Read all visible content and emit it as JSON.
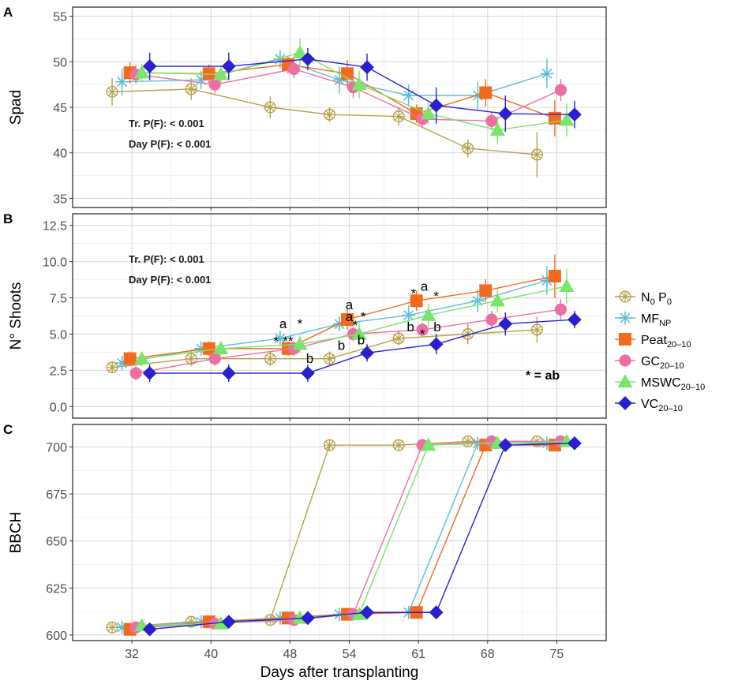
{
  "chart_data": {
    "type": "line",
    "xlabel": "Days after transplanting",
    "x": [
      32,
      40,
      48,
      54,
      61,
      68,
      75
    ],
    "xlim": [
      26,
      80
    ],
    "legend": {
      "placement": "right",
      "entries": [
        {
          "key": "N0P0",
          "base": "N",
          "sub": "0",
          "base2": " P",
          "sub2": "0",
          "color": "#b5a14a",
          "marker": "circle-x"
        },
        {
          "key": "MFNP",
          "base": "MF",
          "sub": "NP",
          "base2": "",
          "sub2": "",
          "color": "#5bbfd8",
          "marker": "asterisk"
        },
        {
          "key": "Peat",
          "base": "Peat",
          "sub": "20–10",
          "base2": "",
          "sub2": "",
          "color": "#f26b1d",
          "marker": "square"
        },
        {
          "key": "GC",
          "base": "GC",
          "sub": "20–10",
          "base2": "",
          "sub2": "",
          "color": "#ec6fa4",
          "marker": "circle"
        },
        {
          "key": "MSWC",
          "base": "MSWC",
          "sub": "20–10",
          "base2": "",
          "sub2": "",
          "color": "#7ae56c",
          "marker": "triangle"
        },
        {
          "key": "VC",
          "base": "VC",
          "sub": "20–10",
          "base2": "",
          "sub2": "",
          "color": "#2a1fd6",
          "marker": "diamond"
        }
      ]
    },
    "panels": [
      {
        "label": "A",
        "ylabel": "Spad",
        "ylim": [
          34,
          56
        ],
        "yticks": [
          35,
          40,
          45,
          50,
          55
        ],
        "yticklabels": [
          "35",
          "40",
          "45",
          "50",
          "55"
        ],
        "stats": [
          "Tr. P(F): < 0.001",
          "Day P(F): < 0.001"
        ],
        "series": [
          {
            "key": "N0P0",
            "values": [
              46.7,
              47.0,
              45.0,
              44.2,
              44.0,
              40.5,
              39.8
            ],
            "errors": [
              1.5,
              1.2,
              1.2,
              0.8,
              1.0,
              1.0,
              2.5
            ]
          },
          {
            "key": "MFNP",
            "values": [
              47.8,
              48.0,
              50.3,
              48.0,
              46.3,
              46.3,
              48.7
            ],
            "errors": [
              1.5,
              1.0,
              1.0,
              1.5,
              1.2,
              1.5,
              1.6
            ]
          },
          {
            "key": "Peat",
            "values": [
              48.8,
              48.7,
              49.7,
              48.7,
              44.3,
              46.6,
              43.8
            ],
            "errors": [
              1.2,
              1.0,
              1.0,
              1.5,
              1.0,
              1.5,
              2.0
            ]
          },
          {
            "key": "GC",
            "values": [
              48.6,
              47.5,
              49.2,
              47.2,
              43.7,
              43.5,
              46.9
            ],
            "errors": [
              1.0,
              1.0,
              1.0,
              1.2,
              1.0,
              1.0,
              1.2
            ]
          },
          {
            "key": "MSWC",
            "values": [
              48.8,
              48.6,
              51.0,
              47.5,
              44.3,
              42.5,
              43.6
            ],
            "errors": [
              1.0,
              1.0,
              1.6,
              1.5,
              1.2,
              1.5,
              1.8
            ]
          },
          {
            "key": "VC",
            "values": [
              49.5,
              49.5,
              50.3,
              49.4,
              45.2,
              44.3,
              44.2
            ],
            "errors": [
              1.5,
              1.5,
              1.2,
              1.5,
              2.0,
              2.0,
              1.5
            ]
          }
        ]
      },
      {
        "label": "B",
        "ylabel": "N° Shoots",
        "ylim": [
          -0.8,
          13.3
        ],
        "yticks": [
          0,
          2.5,
          5,
          7.5,
          10,
          12.5
        ],
        "yticklabels": [
          "0.0",
          "2.5",
          "5.0",
          "7.5",
          "10.0",
          "12.5"
        ],
        "stats": [
          "Tr. P(F): < 0.001",
          "Day P(F): < 0.001"
        ],
        "note": "* = ab",
        "series": [
          {
            "key": "N0P0",
            "values": [
              2.7,
              3.3,
              3.3,
              3.3,
              4.7,
              5.0,
              5.3
            ],
            "errors": [
              0.4,
              0.5,
              0.5,
              0.5,
              0.5,
              0.7,
              0.9
            ]
          },
          {
            "key": "MFNP",
            "values": [
              3.0,
              4.0,
              4.7,
              5.7,
              6.3,
              7.3,
              8.7
            ],
            "errors": [
              0.5,
              0.5,
              0.5,
              0.5,
              0.7,
              0.8,
              1.0
            ]
          },
          {
            "key": "Peat",
            "values": [
              3.3,
              4.0,
              4.0,
              6.0,
              7.3,
              8.0,
              9.0
            ],
            "errors": [
              0.5,
              0.5,
              0.5,
              0.7,
              0.7,
              0.8,
              1.5
            ]
          },
          {
            "key": "GC",
            "values": [
              2.3,
              3.3,
              4.0,
              5.0,
              5.3,
              6.0,
              6.7
            ],
            "errors": [
              0.5,
              0.5,
              0.5,
              0.5,
              0.5,
              0.6,
              0.7
            ]
          },
          {
            "key": "MSWC",
            "values": [
              3.3,
              4.0,
              4.3,
              5.0,
              6.3,
              7.3,
              8.3
            ],
            "errors": [
              0.5,
              0.5,
              0.6,
              0.8,
              0.8,
              0.8,
              1.2
            ]
          },
          {
            "key": "VC",
            "values": [
              2.3,
              2.3,
              2.3,
              3.7,
              4.3,
              5.7,
              6.0
            ],
            "errors": [
              0.6,
              0.6,
              0.6,
              0.6,
              0.7,
              0.8,
              0.6
            ]
          }
        ],
        "annotations": [
          {
            "text": "a",
            "x": 47.3,
            "y": 5.4
          },
          {
            "text": "*",
            "x": 46.6,
            "y": 4.2
          },
          {
            "text": "**",
            "x": 47.8,
            "y": 4.2
          },
          {
            "text": "*",
            "x": 49.0,
            "y": 5.4
          },
          {
            "text": "b",
            "x": 50.0,
            "y": 3.0
          },
          {
            "text": "a",
            "x": 54.0,
            "y": 6.7
          },
          {
            "text": "a",
            "x": 54.0,
            "y": 5.9
          },
          {
            "text": "*",
            "x": 54.6,
            "y": 5.3
          },
          {
            "text": "*",
            "x": 55.4,
            "y": 5.9
          },
          {
            "text": "b",
            "x": 53.2,
            "y": 3.9
          },
          {
            "text": "b",
            "x": 55.2,
            "y": 4.3
          },
          {
            "text": "*",
            "x": 60.5,
            "y": 7.5
          },
          {
            "text": "a",
            "x": 61.6,
            "y": 8.0
          },
          {
            "text": "*",
            "x": 62.8,
            "y": 7.3
          },
          {
            "text": "b",
            "x": 60.2,
            "y": 5.2
          },
          {
            "text": "*",
            "x": 61.4,
            "y": 4.7
          },
          {
            "text": "b",
            "x": 62.9,
            "y": 5.2
          }
        ]
      },
      {
        "label": "C",
        "ylabel": "BBCH",
        "ylim": [
          597,
          712
        ],
        "yticks": [
          600,
          625,
          650,
          675,
          700
        ],
        "yticklabels": [
          "600",
          "625",
          "650",
          "675",
          "700"
        ],
        "series": [
          {
            "key": "N0P0",
            "values": [
              604,
              607,
              608,
              701,
              701,
              703,
              703
            ],
            "errors": [
              0,
              0,
              0,
              0,
              0,
              0,
              0
            ]
          },
          {
            "key": "MFNP",
            "values": [
              604,
              607,
              609,
              611,
              612,
              702,
              702
            ],
            "errors": [
              0,
              0,
              0,
              0,
              0,
              0,
              0
            ]
          },
          {
            "key": "Peat",
            "values": [
              603,
              607,
              609,
              611,
              612,
              701,
              701
            ],
            "errors": [
              0,
              0,
              0,
              0,
              0,
              0,
              0
            ]
          },
          {
            "key": "GC",
            "values": [
              604,
              606,
              608,
              611,
              701,
              703,
              703
            ],
            "errors": [
              0,
              0,
              0,
              0,
              0,
              0,
              0
            ]
          },
          {
            "key": "MSWC",
            "values": [
              605,
              606,
              609,
              611,
              701,
              702,
              703
            ],
            "errors": [
              0,
              0,
              0,
              0,
              0,
              0,
              0
            ]
          },
          {
            "key": "VC",
            "values": [
              603,
              607,
              609,
              612,
              612,
              701,
              702
            ],
            "errors": [
              0,
              0,
              0,
              0,
              0,
              0,
              0
            ]
          }
        ]
      }
    ]
  }
}
